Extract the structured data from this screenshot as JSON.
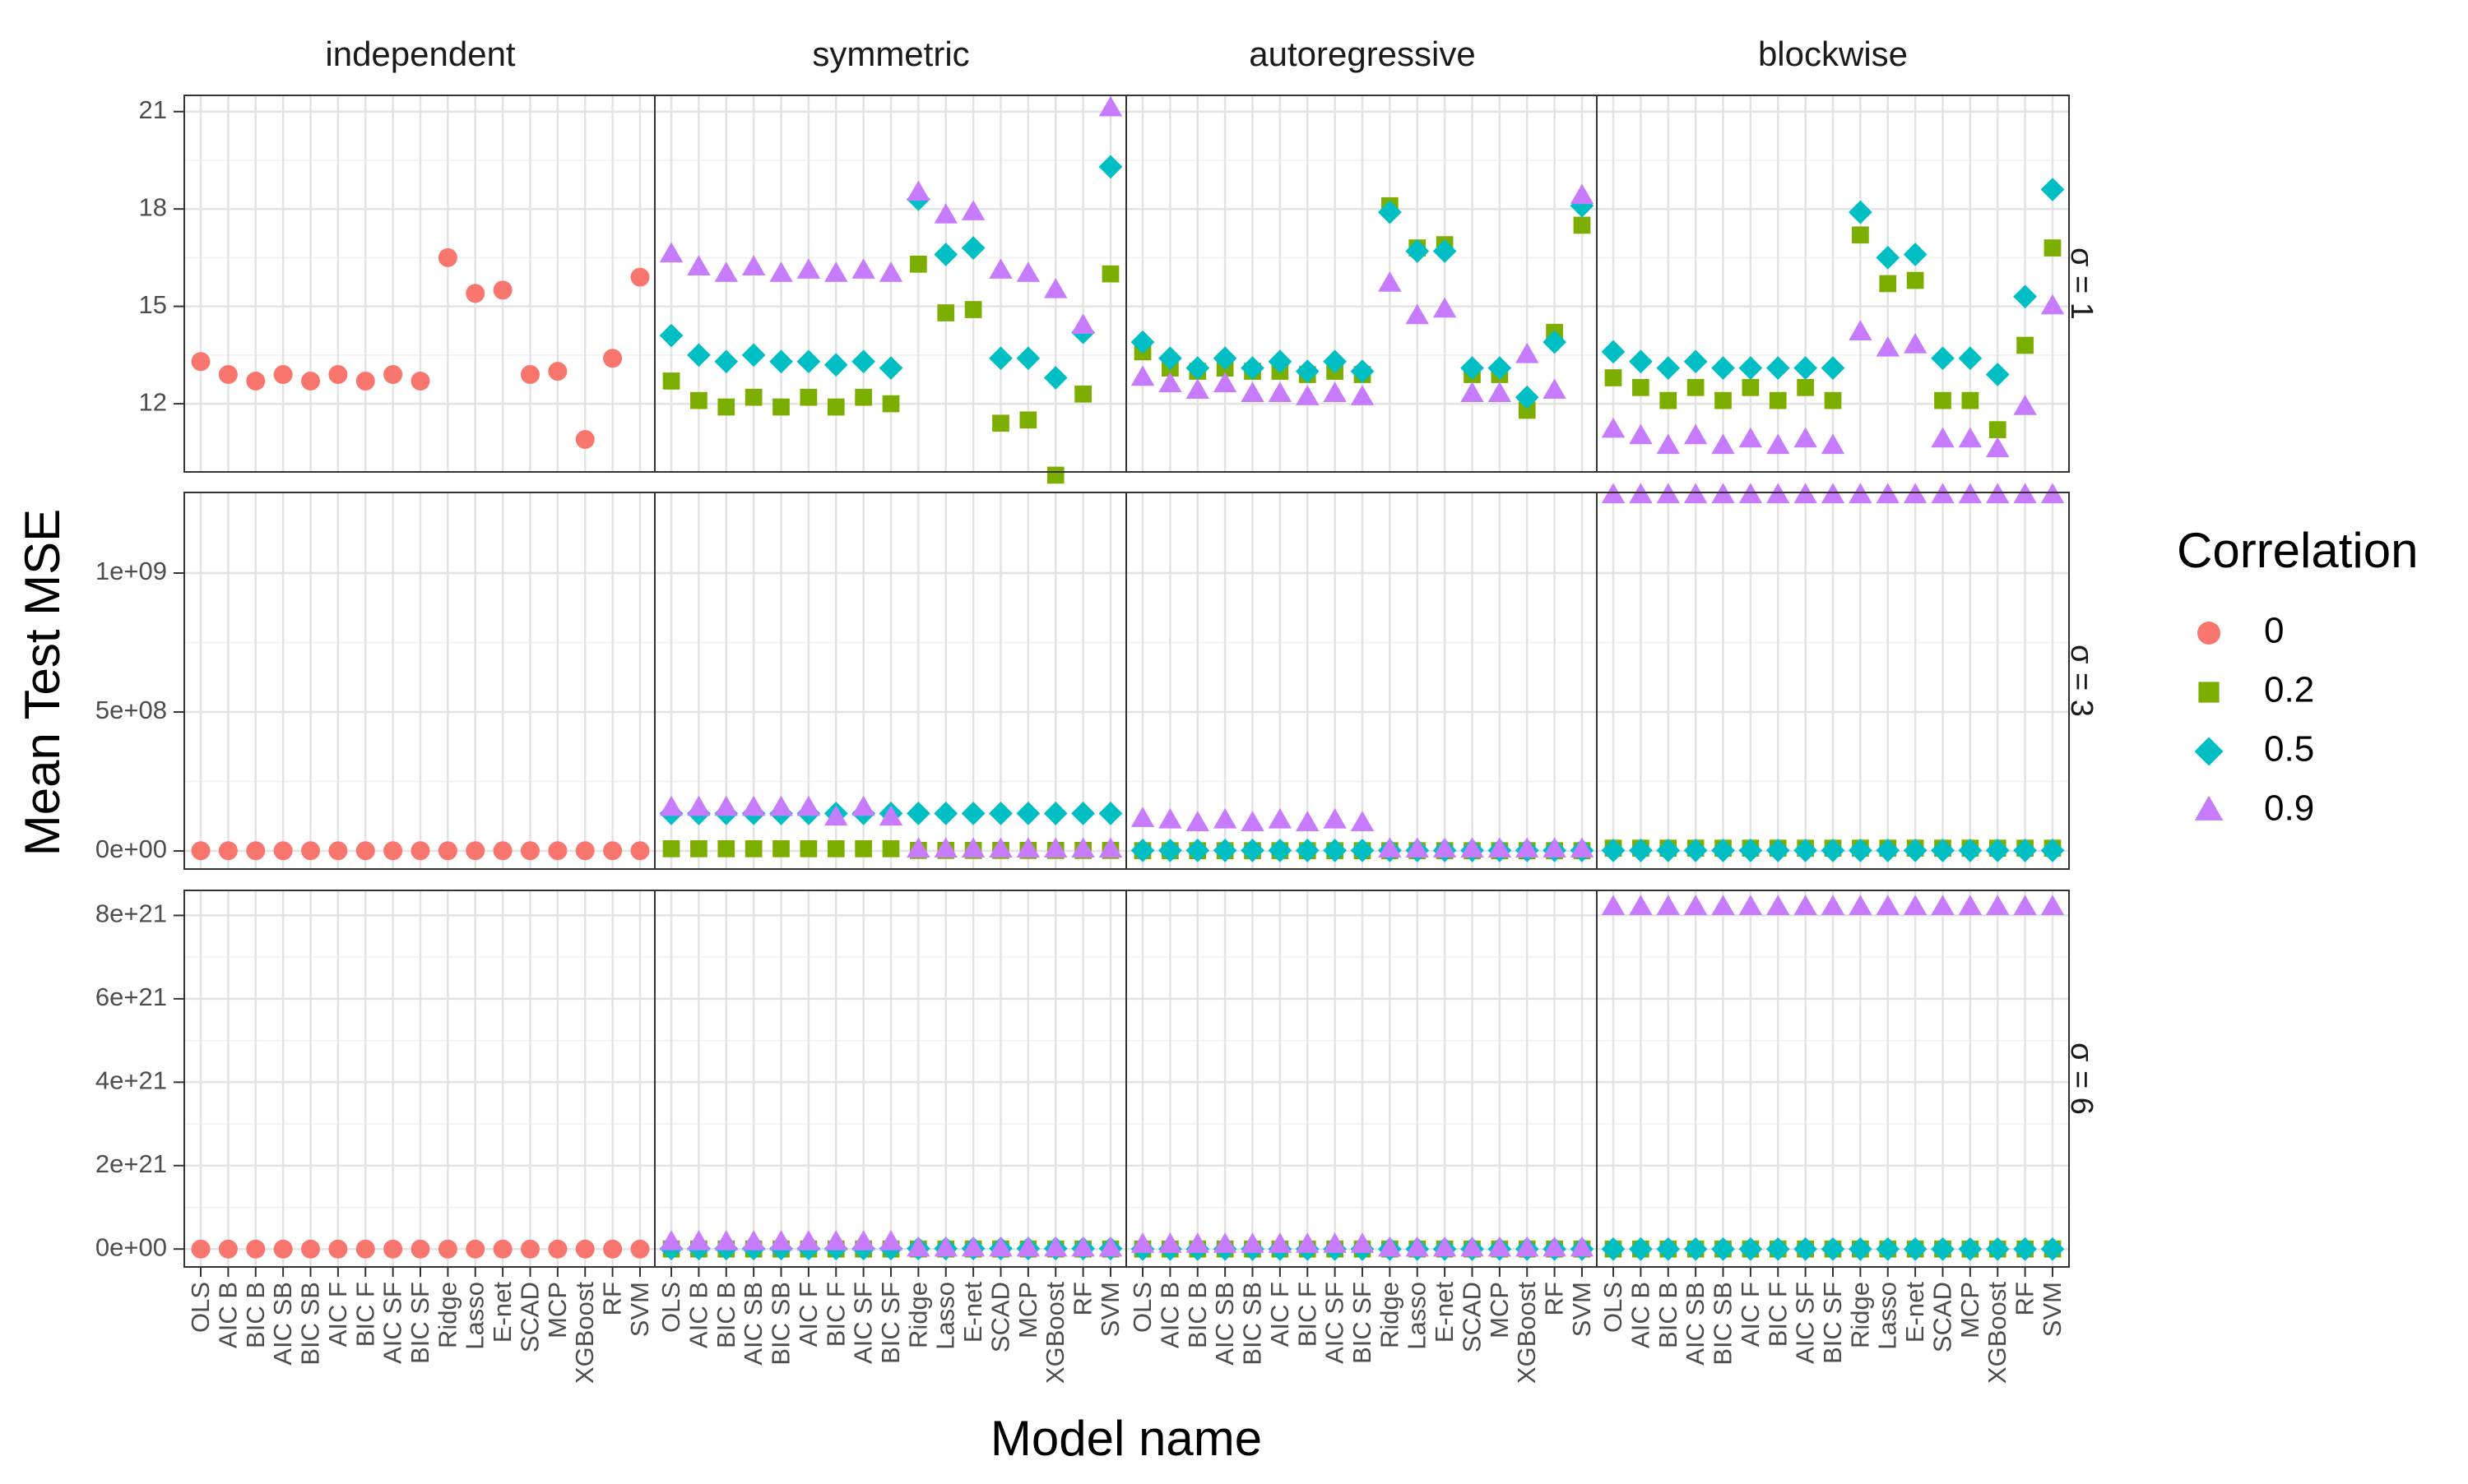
{
  "chart_data": {
    "type": "scatter",
    "facet_columns": [
      "independent",
      "symmetric",
      "autoregressive",
      "blockwise"
    ],
    "facet_rows": [
      "σ = 1",
      "σ = 3",
      "σ = 6"
    ],
    "categories": [
      "OLS",
      "AIC B",
      "BIC B",
      "AIC SB",
      "BIC SB",
      "AIC F",
      "BIC F",
      "AIC SF",
      "BIC SF",
      "Ridge",
      "Lasso",
      "E-net",
      "SCAD",
      "MCP",
      "XGBoost",
      "RF",
      "SVM"
    ],
    "xlabel": "Model name",
    "ylabel": "Mean Test MSE",
    "legend": {
      "title": "Correlation",
      "position": "right",
      "entries": [
        {
          "label": "0",
          "color": "#F8766D",
          "shape": "circle"
        },
        {
          "label": "0.2",
          "color": "#7CAE00",
          "shape": "square"
        },
        {
          "label": "0.5",
          "color": "#00BFC4",
          "shape": "diamond"
        },
        {
          "label": "0.9",
          "color": "#C77CFF",
          "shape": "triangle"
        }
      ]
    },
    "grid": true,
    "rows": [
      {
        "ylim": [
          9.9,
          21.5
        ],
        "y_ticks": [
          12,
          15,
          18,
          21
        ],
        "y_tick_labels": [
          "12",
          "15",
          "18",
          "21"
        ],
        "panels": [
          {
            "series": [
              {
                "name": "0",
                "values": [
                  13.3,
                  12.9,
                  12.7,
                  12.9,
                  12.7,
                  12.9,
                  12.7,
                  12.9,
                  12.7,
                  16.5,
                  15.4,
                  15.5,
                  12.9,
                  13.0,
                  10.9,
                  13.4,
                  15.9
                ]
              }
            ]
          },
          {
            "series": [
              {
                "name": "0.2",
                "values": [
                  12.7,
                  12.1,
                  11.9,
                  12.2,
                  11.9,
                  12.2,
                  11.9,
                  12.2,
                  12.0,
                  16.3,
                  14.8,
                  14.9,
                  11.4,
                  11.5,
                  9.8,
                  12.3,
                  16.0
                ]
              },
              {
                "name": "0.5",
                "values": [
                  14.1,
                  13.5,
                  13.3,
                  13.5,
                  13.3,
                  13.3,
                  13.2,
                  13.3,
                  13.1,
                  18.3,
                  16.6,
                  16.8,
                  13.4,
                  13.4,
                  12.8,
                  14.2,
                  19.3
                ]
              },
              {
                "name": "0.9",
                "values": [
                  16.6,
                  16.2,
                  16.0,
                  16.2,
                  16.0,
                  16.1,
                  16.0,
                  16.1,
                  16.0,
                  18.5,
                  17.8,
                  17.9,
                  16.1,
                  16.0,
                  15.5,
                  14.4,
                  21.1
                ]
              }
            ]
          },
          {
            "series": [
              {
                "name": "0.2",
                "values": [
                  13.6,
                  13.1,
                  13.0,
                  13.1,
                  13.0,
                  13.0,
                  12.9,
                  13.0,
                  12.9,
                  18.1,
                  16.8,
                  16.9,
                  12.9,
                  12.9,
                  11.8,
                  14.2,
                  17.5
                ]
              },
              {
                "name": "0.5",
                "values": [
                  13.9,
                  13.4,
                  13.1,
                  13.4,
                  13.1,
                  13.3,
                  13.0,
                  13.3,
                  13.0,
                  17.9,
                  16.7,
                  16.7,
                  13.1,
                  13.1,
                  12.2,
                  13.9,
                  18.1
                ]
              },
              {
                "name": "0.9",
                "values": [
                  12.8,
                  12.6,
                  12.4,
                  12.6,
                  12.3,
                  12.3,
                  12.2,
                  12.3,
                  12.2,
                  15.7,
                  14.7,
                  14.9,
                  12.3,
                  12.3,
                  13.5,
                  12.4,
                  18.4
                ]
              }
            ]
          },
          {
            "series": [
              {
                "name": "0.2",
                "values": [
                  12.8,
                  12.5,
                  12.1,
                  12.5,
                  12.1,
                  12.5,
                  12.1,
                  12.5,
                  12.1,
                  17.2,
                  15.7,
                  15.8,
                  12.1,
                  12.1,
                  11.2,
                  13.8,
                  16.8
                ]
              },
              {
                "name": "0.5",
                "values": [
                  13.6,
                  13.3,
                  13.1,
                  13.3,
                  13.1,
                  13.1,
                  13.1,
                  13.1,
                  13.1,
                  17.9,
                  16.5,
                  16.6,
                  13.4,
                  13.4,
                  12.9,
                  15.3,
                  18.6
                ]
              },
              {
                "name": "0.9",
                "values": [
                  11.2,
                  11.0,
                  10.7,
                  11.0,
                  10.7,
                  10.9,
                  10.7,
                  10.9,
                  10.7,
                  14.2,
                  13.7,
                  13.8,
                  10.9,
                  10.9,
                  10.6,
                  11.9,
                  15.0
                ]
              }
            ]
          }
        ]
      },
      {
        "ylim": [
          -65000000,
          1290000000
        ],
        "y_ticks": [
          0,
          500000000,
          1000000000
        ],
        "y_tick_labels": [
          "0e+00",
          "5e+08",
          "1e+09"
        ],
        "panels": [
          {
            "series": [
              {
                "name": "0",
                "values": [
                  1000000,
                  1000000,
                  1000000,
                  1000000,
                  1000000,
                  1000000,
                  1000000,
                  1000000,
                  1000000,
                  1000000,
                  1000000,
                  1000000,
                  1000000,
                  1000000,
                  1000000,
                  1000000,
                  1000000
                ]
              }
            ]
          },
          {
            "series": [
              {
                "name": "0.2",
                "values": [
                  8000000,
                  8000000,
                  8000000,
                  8000000,
                  8000000,
                  8000000,
                  8000000,
                  8000000,
                  8000000,
                  2000000,
                  2000000,
                  2000000,
                  2000000,
                  2000000,
                  2000000,
                  2000000,
                  2000000
                ]
              },
              {
                "name": "0.5",
                "values": [
                  135000000,
                  135000000,
                  135000000,
                  135000000,
                  135000000,
                  135000000,
                  135000000,
                  135000000,
                  135000000,
                  135000000,
                  135000000,
                  135000000,
                  135000000,
                  135000000,
                  135000000,
                  135000000,
                  135000000
                ]
              },
              {
                "name": "0.9",
                "values": [
                  155000000,
                  155000000,
                  155000000,
                  155000000,
                  155000000,
                  155000000,
                  120000000,
                  155000000,
                  120000000,
                  5000000,
                  5000000,
                  5000000,
                  5000000,
                  5000000,
                  5000000,
                  5000000,
                  5000000
                ]
              }
            ]
          },
          {
            "series": [
              {
                "name": "0.2",
                "values": [
                  1000000,
                  1000000,
                  1000000,
                  1000000,
                  1000000,
                  1000000,
                  1000000,
                  1000000,
                  1000000,
                  1000000,
                  1000000,
                  1000000,
                  1000000,
                  1000000,
                  1000000,
                  1000000,
                  1000000
                ]
              },
              {
                "name": "0.5",
                "values": [
                  2000000,
                  2000000,
                  2000000,
                  2000000,
                  2000000,
                  2000000,
                  2000000,
                  2000000,
                  2000000,
                  2000000,
                  2000000,
                  2000000,
                  2000000,
                  2000000,
                  2000000,
                  2000000,
                  2000000
                ]
              },
              {
                "name": "0.9",
                "values": [
                  115000000,
                  110000000,
                  100000000,
                  110000000,
                  100000000,
                  110000000,
                  100000000,
                  110000000,
                  100000000,
                  5000000,
                  5000000,
                  5000000,
                  5000000,
                  5000000,
                  5000000,
                  5000000,
                  5000000
                ]
              }
            ]
          },
          {
            "series": [
              {
                "name": "0.2",
                "values": [
                  10000000,
                  10000000,
                  10000000,
                  10000000,
                  10000000,
                  10000000,
                  10000000,
                  10000000,
                  10000000,
                  10000000,
                  10000000,
                  10000000,
                  10000000,
                  10000000,
                  10000000,
                  10000000,
                  10000000
                ]
              },
              {
                "name": "0.5",
                "values": [
                  2000000,
                  2000000,
                  2000000,
                  2000000,
                  2000000,
                  2000000,
                  2000000,
                  2000000,
                  2000000,
                  2000000,
                  2000000,
                  2000000,
                  2000000,
                  2000000,
                  2000000,
                  2000000,
                  2000000
                ]
              },
              {
                "name": "0.9",
                "values": [
                  1280000000,
                  1280000000,
                  1280000000,
                  1280000000,
                  1280000000,
                  1280000000,
                  1280000000,
                  1280000000,
                  1280000000,
                  1280000000,
                  1280000000,
                  1280000000,
                  1280000000,
                  1280000000,
                  1280000000,
                  1280000000,
                  1280000000
                ]
              }
            ]
          }
        ]
      },
      {
        "ylim": [
          -4.3e+20,
          8.6e+21
        ],
        "y_ticks": [
          0,
          2e+21,
          4e+21,
          6e+21,
          8e+21
        ],
        "y_tick_labels": [
          "0e+00",
          "2e+21",
          "4e+21",
          "6e+21",
          "8e+21"
        ],
        "panels": [
          {
            "series": [
              {
                "name": "0",
                "values": [
                  0,
                  0,
                  0,
                  0,
                  0,
                  0,
                  0,
                  0,
                  0,
                  0,
                  0,
                  0,
                  0,
                  0,
                  0,
                  0,
                  0
                ]
              }
            ]
          },
          {
            "series": [
              {
                "name": "0.2",
                "values": [
                  0,
                  0,
                  0,
                  0,
                  0,
                  0,
                  0,
                  0,
                  0,
                  0,
                  0,
                  0,
                  0,
                  0,
                  0,
                  0,
                  0
                ]
              },
              {
                "name": "0.5",
                "values": [
                  1e+19,
                  1e+19,
                  1e+19,
                  1e+19,
                  1e+19,
                  1e+19,
                  1e+19,
                  1e+19,
                  1e+19,
                  1e+19,
                  1e+19,
                  1e+19,
                  1e+19,
                  1e+19,
                  1e+19,
                  1e+19,
                  1e+19
                ]
              },
              {
                "name": "0.9",
                "values": [
                  1.6e+20,
                  1.6e+20,
                  1.6e+20,
                  1.6e+20,
                  1.6e+20,
                  1.6e+20,
                  1.6e+20,
                  1.6e+20,
                  1.6e+20,
                  1e+19,
                  1e+19,
                  1e+19,
                  1e+19,
                  1e+19,
                  1e+19,
                  1e+19,
                  1e+19
                ]
              }
            ]
          },
          {
            "series": [
              {
                "name": "0.2",
                "values": [
                  0,
                  0,
                  0,
                  0,
                  0,
                  0,
                  0,
                  0,
                  0,
                  0,
                  0,
                  0,
                  0,
                  0,
                  0,
                  0,
                  0
                ]
              },
              {
                "name": "0.5",
                "values": [
                  0,
                  0,
                  0,
                  0,
                  0,
                  0,
                  0,
                  0,
                  0,
                  0,
                  0,
                  0,
                  0,
                  0,
                  0,
                  0,
                  0
                ]
              },
              {
                "name": "0.9",
                "values": [
                  1e+20,
                  1e+20,
                  1e+20,
                  1e+20,
                  1e+20,
                  1e+20,
                  1e+20,
                  1e+20,
                  1e+20,
                  1e+19,
                  1e+19,
                  1e+19,
                  1e+19,
                  1e+19,
                  1e+19,
                  1e+19,
                  1e+19
                ]
              }
            ]
          },
          {
            "series": [
              {
                "name": "0.2",
                "values": [
                  0,
                  0,
                  0,
                  0,
                  0,
                  0,
                  0,
                  0,
                  0,
                  0,
                  0,
                  0,
                  0,
                  0,
                  0,
                  0,
                  0
                ]
              },
              {
                "name": "0.5",
                "values": [
                  0,
                  0,
                  0,
                  0,
                  0,
                  0,
                  0,
                  0,
                  0,
                  0,
                  0,
                  0,
                  0,
                  0,
                  0,
                  0,
                  0
                ]
              },
              {
                "name": "0.9",
                "values": [
                  8.2e+21,
                  8.2e+21,
                  8.2e+21,
                  8.2e+21,
                  8.2e+21,
                  8.2e+21,
                  8.2e+21,
                  8.2e+21,
                  8.2e+21,
                  8.2e+21,
                  8.2e+21,
                  8.2e+21,
                  8.2e+21,
                  8.2e+21,
                  8.2e+21,
                  8.2e+21,
                  8.2e+21
                ]
              }
            ]
          }
        ]
      }
    ]
  }
}
